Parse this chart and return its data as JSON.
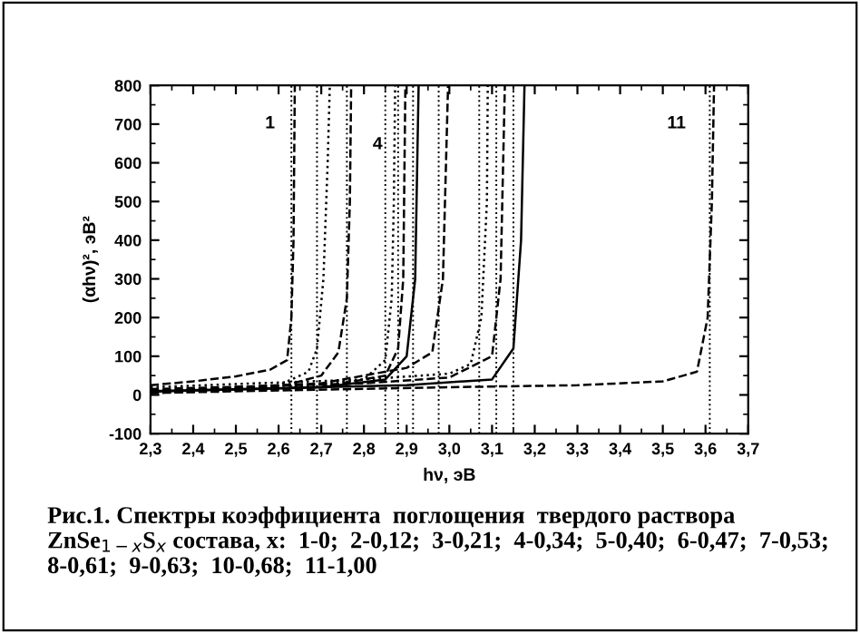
{
  "chart_data": {
    "type": "line",
    "xlabel": "hν, эВ",
    "ylabel": "(αhν)², эВ²",
    "xlim": [
      2.3,
      3.7
    ],
    "xticks": [
      {
        "value": 2.3,
        "label": "2,3"
      },
      {
        "value": 2.4,
        "label": "2,4"
      },
      {
        "value": 2.5,
        "label": "2,5"
      },
      {
        "value": 2.6,
        "label": "2,6"
      },
      {
        "value": 2.7,
        "label": "2,7"
      },
      {
        "value": 2.8,
        "label": "2,8"
      },
      {
        "value": 2.9,
        "label": "2,9"
      },
      {
        "value": 3.0,
        "label": "3,0"
      },
      {
        "value": 3.1,
        "label": "3,1"
      },
      {
        "value": 3.2,
        "label": "3,2"
      },
      {
        "value": 3.3,
        "label": "3,3"
      },
      {
        "value": 3.4,
        "label": "3,4"
      },
      {
        "value": 3.5,
        "label": "3,5"
      },
      {
        "value": 3.6,
        "label": "3,6"
      },
      {
        "value": 3.7,
        "label": "3,7"
      }
    ],
    "ylim": [
      -100,
      800
    ],
    "yticks": [
      -100,
      0,
      100,
      200,
      300,
      400,
      500,
      600,
      700,
      800
    ],
    "grid": false,
    "legend": false,
    "marker": "none",
    "series": [
      {
        "color": "#000000",
        "line_style": "dashed",
        "x": [
          2.3,
          2.4,
          2.5,
          2.58,
          2.62,
          2.63,
          2.635,
          2.638
        ],
        "values": [
          25,
          35,
          48,
          65,
          90,
          200,
          400,
          800
        ]
      },
      {
        "color": "#000000",
        "line_style": "dotted",
        "x": [
          2.3,
          2.5,
          2.6,
          2.67,
          2.69,
          2.705,
          2.715,
          2.72
        ],
        "values": [
          10,
          15,
          25,
          60,
          120,
          300,
          600,
          800
        ]
      },
      {
        "color": "#000000",
        "line_style": "dashed",
        "x": [
          2.3,
          2.6,
          2.7,
          2.74,
          2.76,
          2.767,
          2.77
        ],
        "values": [
          10,
          20,
          50,
          110,
          250,
          500,
          800
        ]
      },
      {
        "color": "#000000",
        "line_style": "dotted",
        "x": [
          2.3,
          2.6,
          2.8,
          2.85,
          2.865,
          2.87,
          2.873
        ],
        "values": [
          5,
          15,
          40,
          90,
          250,
          500,
          800
        ]
      },
      {
        "color": "#000000",
        "line_style": "dashed",
        "x": [
          2.3,
          2.7,
          2.85,
          2.88,
          2.892,
          2.897
        ],
        "values": [
          5,
          20,
          50,
          120,
          300,
          800
        ]
      },
      {
        "color": "#000000",
        "line_style": "solid",
        "x": [
          2.3,
          2.7,
          2.85,
          2.9,
          2.92,
          2.928
        ],
        "values": [
          8,
          20,
          40,
          100,
          300,
          800
        ]
      },
      {
        "color": "#000000",
        "line_style": "dashed",
        "x": [
          2.3,
          2.7,
          2.9,
          2.96,
          2.985,
          2.997
        ],
        "values": [
          10,
          30,
          70,
          110,
          300,
          800
        ]
      },
      {
        "color": "#000000",
        "line_style": "dotted",
        "x": [
          2.3,
          2.8,
          3.0,
          3.05,
          3.075,
          3.088,
          3.09
        ],
        "values": [
          20,
          40,
          55,
          80,
          200,
          500,
          800
        ]
      },
      {
        "color": "#000000",
        "line_style": "dashed",
        "x": [
          2.3,
          2.8,
          3.0,
          3.1,
          3.12,
          3.13
        ],
        "values": [
          15,
          30,
          45,
          100,
          300,
          800
        ]
      },
      {
        "color": "#000000",
        "line_style": "solid",
        "x": [
          2.3,
          2.9,
          3.1,
          3.15,
          3.168,
          3.176
        ],
        "values": [
          10,
          25,
          40,
          120,
          400,
          800
        ]
      },
      {
        "color": "#000000",
        "line_style": "dashed",
        "x": [
          2.3,
          3.0,
          3.3,
          3.5,
          3.58,
          3.605,
          3.615,
          3.62
        ],
        "values": [
          5,
          20,
          25,
          35,
          60,
          200,
          500,
          800
        ]
      }
    ],
    "ref_lines": [
      {
        "axis": "x",
        "value": 2.63,
        "color": "#000000",
        "line_style": "dotted"
      },
      {
        "axis": "x",
        "value": 2.69,
        "color": "#000000",
        "line_style": "dotted"
      },
      {
        "axis": "x",
        "value": 2.76,
        "color": "#000000",
        "line_style": "dotted"
      },
      {
        "axis": "x",
        "value": 2.85,
        "color": "#000000",
        "line_style": "dotted"
      },
      {
        "axis": "x",
        "value": 2.88,
        "color": "#000000",
        "line_style": "dotted"
      },
      {
        "axis": "x",
        "value": 2.915,
        "color": "#000000",
        "line_style": "dotted"
      },
      {
        "axis": "x",
        "value": 2.975,
        "color": "#000000",
        "line_style": "dotted"
      },
      {
        "axis": "x",
        "value": 3.07,
        "color": "#000000",
        "line_style": "dotted"
      },
      {
        "axis": "x",
        "value": 3.11,
        "color": "#000000",
        "line_style": "dotted"
      },
      {
        "axis": "x",
        "value": 3.15,
        "color": "#000000",
        "line_style": "dotted"
      },
      {
        "axis": "x",
        "value": 3.61,
        "color": "#000000",
        "line_style": "dotted"
      }
    ],
    "annotations": [
      "1",
      "4",
      "11",
      "Рис.1. Спектры коэффициента  поглощения  твердого раствора ZnSe$_{1−x}$S$_{x}$ состава, х:  1-0;  2-0,12;  3-0,21;  4-0,34;  5-0,40;  6-0,47;  7-0,53;  8-0,61;  9-0,63;  10-0,68;  11-1,00"
    ]
  }
}
